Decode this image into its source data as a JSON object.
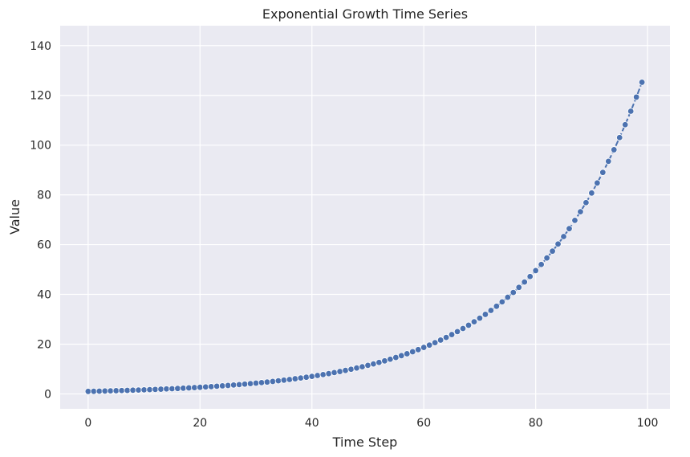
{
  "chart_data": {
    "type": "line",
    "title": "Exponential Growth Time Series",
    "xlabel": "Time Step",
    "ylabel": "Value",
    "xlim": [
      -5,
      104
    ],
    "ylim": [
      -6,
      148
    ],
    "x_ticks": [
      0,
      20,
      40,
      60,
      80,
      100
    ],
    "y_ticks": [
      0,
      20,
      40,
      60,
      80,
      100,
      120,
      140
    ],
    "grid": true,
    "marker": "circle",
    "line_style": "dashed",
    "colors": {
      "background": "#eaeaf2",
      "grid": "#ffffff",
      "series": "#4c72b0",
      "marker_edge": "#ffffff"
    },
    "series": [
      {
        "x": [
          0,
          1,
          2,
          3,
          4,
          5,
          6,
          7,
          8,
          9,
          10,
          11,
          12,
          13,
          14,
          15,
          16,
          17,
          18,
          19,
          20,
          21,
          22,
          23,
          24,
          25,
          26,
          27,
          28,
          29,
          30,
          31,
          32,
          33,
          34,
          35,
          36,
          37,
          38,
          39,
          40,
          41,
          42,
          43,
          44,
          45,
          46,
          47,
          48,
          49,
          50,
          51,
          52,
          53,
          54,
          55,
          56,
          57,
          58,
          59,
          60,
          61,
          62,
          63,
          64,
          65,
          66,
          67,
          68,
          69,
          70,
          71,
          72,
          73,
          74,
          75,
          76,
          77,
          78,
          79,
          80,
          81,
          82,
          83,
          84,
          85,
          86,
          87,
          88,
          89,
          90,
          91,
          92,
          93,
          94,
          95,
          96,
          97,
          98,
          99
        ],
        "values": [
          1.0,
          1.05,
          1.1,
          1.16,
          1.22,
          1.28,
          1.34,
          1.41,
          1.48,
          1.55,
          1.63,
          1.71,
          1.8,
          1.89,
          1.98,
          2.08,
          2.18,
          2.29,
          2.41,
          2.53,
          2.65,
          2.79,
          2.93,
          3.07,
          3.23,
          3.39,
          3.56,
          3.73,
          3.92,
          4.12,
          4.32,
          4.54,
          4.76,
          5.0,
          5.25,
          5.52,
          5.79,
          6.08,
          6.39,
          6.7,
          7.04,
          7.39,
          7.76,
          8.15,
          8.56,
          8.99,
          9.43,
          9.91,
          10.4,
          10.92,
          11.47,
          12.04,
          12.64,
          13.27,
          13.94,
          14.64,
          15.37,
          16.13,
          16.94,
          17.79,
          18.68,
          19.61,
          20.59,
          21.62,
          22.7,
          23.84,
          25.03,
          26.28,
          27.6,
          28.98,
          30.43,
          31.95,
          33.55,
          35.22,
          36.98,
          38.83,
          40.78,
          42.82,
          44.96,
          47.2,
          49.56,
          52.04,
          54.64,
          57.38,
          60.25,
          63.26,
          66.42,
          69.74,
          73.23,
          76.9,
          80.74,
          84.78,
          89.02,
          93.47,
          98.14,
          103.05,
          108.2,
          113.61,
          119.29,
          125.26
        ]
      }
    ]
  }
}
